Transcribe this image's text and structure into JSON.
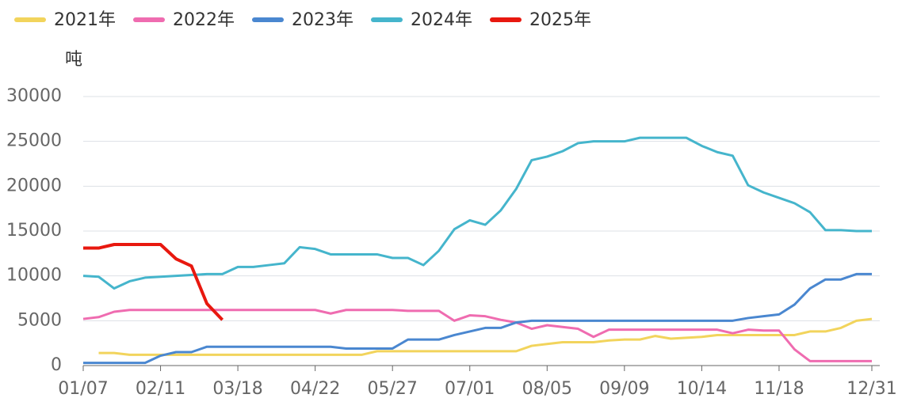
{
  "chart_data": {
    "type": "line",
    "y_axis_label": "吨",
    "categories": [
      "01/07",
      null,
      null,
      null,
      null,
      "02/11",
      null,
      null,
      null,
      null,
      "03/18",
      null,
      null,
      null,
      null,
      "04/22",
      null,
      null,
      null,
      null,
      "05/27",
      null,
      null,
      null,
      null,
      "07/01",
      null,
      null,
      null,
      null,
      "08/05",
      null,
      null,
      null,
      null,
      "09/09",
      null,
      null,
      null,
      null,
      "10/14",
      null,
      null,
      null,
      null,
      "11/18",
      null,
      null,
      null,
      null,
      null,
      "12/31"
    ],
    "series": [
      {
        "name": "2021年",
        "color": "#f2d45c",
        "values": [
          null,
          1400,
          1400,
          1200,
          1200,
          1200,
          1200,
          1200,
          1200,
          1200,
          1200,
          1200,
          1200,
          1200,
          1200,
          1200,
          1200,
          1200,
          1200,
          1600,
          1600,
          1600,
          1600,
          1600,
          1600,
          1600,
          1600,
          1600,
          1600,
          2200,
          2400,
          2600,
          2600,
          2600,
          2800,
          2900,
          2900,
          3300,
          3000,
          3100,
          3200,
          3400,
          3400,
          3400,
          3400,
          3400,
          3400,
          3800,
          3800,
          4200,
          5000,
          5200
        ]
      },
      {
        "name": "2022年",
        "color": "#ef6cb0",
        "values": [
          5200,
          5400,
          6000,
          6200,
          6200,
          6200,
          6200,
          6200,
          6200,
          6200,
          6200,
          6200,
          6200,
          6200,
          6200,
          6200,
          5800,
          6200,
          6200,
          6200,
          6200,
          6100,
          6100,
          6100,
          5000,
          5600,
          5500,
          5100,
          4800,
          4100,
          4500,
          4300,
          4100,
          3200,
          4000,
          4000,
          4000,
          4000,
          4000,
          4000,
          4000,
          4000,
          3600,
          4000,
          3900,
          3900,
          1800,
          500,
          500,
          500,
          500,
          500
        ]
      },
      {
        "name": "2023年",
        "color": "#4a87d0",
        "values": [
          300,
          300,
          300,
          300,
          300,
          1100,
          1500,
          1500,
          2100,
          2100,
          2100,
          2100,
          2100,
          2100,
          2100,
          2100,
          2100,
          1900,
          1900,
          1900,
          1900,
          2900,
          2900,
          2900,
          3400,
          3800,
          4200,
          4200,
          4800,
          5000,
          5000,
          5000,
          5000,
          5000,
          5000,
          5000,
          5000,
          5000,
          5000,
          5000,
          5000,
          5000,
          5000,
          5300,
          5500,
          5700,
          6800,
          8600,
          9600,
          9600,
          10200,
          10200
        ]
      },
      {
        "name": "2024年",
        "color": "#45b5cc",
        "values": [
          10000,
          9900,
          8600,
          9400,
          9800,
          9900,
          10000,
          10100,
          10200,
          10200,
          11000,
          11000,
          11200,
          11400,
          13200,
          13000,
          12400,
          12400,
          12400,
          12400,
          12000,
          12000,
          11200,
          12800,
          15200,
          16200,
          15700,
          17300,
          19700,
          22900,
          23300,
          23900,
          24800,
          25000,
          25000,
          25000,
          25400,
          25400,
          25400,
          25400,
          24500,
          23800,
          23400,
          20100,
          19300,
          18700,
          18100,
          17100,
          15100,
          15100,
          15000,
          15000
        ]
      },
      {
        "name": "2025年",
        "color": "#e8180f",
        "values": [
          13100,
          13100,
          13500,
          13500,
          13500,
          13500,
          11900,
          11100,
          6900,
          5100,
          null,
          null,
          null,
          null,
          null,
          null,
          null,
          null,
          null,
          null,
          null,
          null,
          null,
          null,
          null,
          null,
          null,
          null,
          null,
          null,
          null,
          null,
          null,
          null,
          null,
          null,
          null,
          null,
          null,
          null,
          null,
          null,
          null,
          null,
          null,
          null,
          null,
          null,
          null,
          null,
          null,
          null
        ]
      }
    ],
    "ylim": [
      0,
      30000
    ],
    "yticks": [
      0,
      5000,
      10000,
      15000,
      20000,
      25000,
      30000
    ],
    "grid": true
  }
}
